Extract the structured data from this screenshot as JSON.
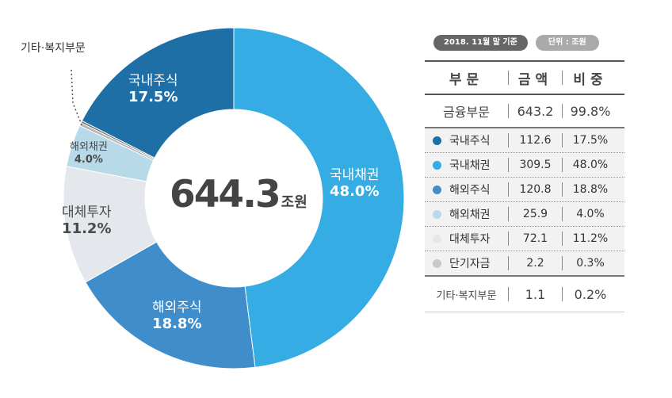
{
  "chart_data": {
    "type": "pie",
    "center_total": "644.3",
    "center_unit": "조원",
    "slices": [
      {
        "name": "국내채권",
        "percent": 48.0,
        "label": "48.0%",
        "color": "#35ace3"
      },
      {
        "name": "해외주식",
        "percent": 18.8,
        "label": "18.8%",
        "color": "#3f8dcb"
      },
      {
        "name": "대체투자",
        "percent": 11.2,
        "label": "11.2%",
        "color": "#e4e7ec"
      },
      {
        "name": "해외채권",
        "percent": 4.0,
        "label": "4.0%",
        "color": "#b7d9e8"
      },
      {
        "name": "단기자금",
        "percent": 0.3,
        "label": "",
        "color": "#b5b5b5"
      },
      {
        "name": "기타·복지부문",
        "percent": 0.2,
        "label": "",
        "color": "#6e6e6e"
      },
      {
        "name": "국내주식",
        "percent": 17.5,
        "label": "17.5%",
        "color": "#1e6fa6"
      }
    ],
    "callout": "기타·복지부문"
  },
  "table": {
    "date_pill": "2018. 11월 말 기준",
    "unit_pill": "단위 : 조원",
    "headers": [
      "부문",
      "금액",
      "비중"
    ],
    "total": {
      "name": "금융부문",
      "amount": "643.2",
      "ratio": "99.8%"
    },
    "rows": [
      {
        "name": "국내주식",
        "amount": "112.6",
        "ratio": "17.5%",
        "color": "#1e6fa6"
      },
      {
        "name": "국내채권",
        "amount": "309.5",
        "ratio": "48.0%",
        "color": "#35ace3"
      },
      {
        "name": "해외주식",
        "amount": "120.8",
        "ratio": "18.8%",
        "color": "#3f8dcb"
      },
      {
        "name": "해외채권",
        "amount": "25.9",
        "ratio": "4.0%",
        "color": "#b7d9e8"
      },
      {
        "name": "대체투자",
        "amount": "72.1",
        "ratio": "11.2%",
        "color": "#e4e7ec"
      },
      {
        "name": "단기자금",
        "amount": "2.2",
        "ratio": "0.3%",
        "color": "#c8c8c8"
      }
    ],
    "other": {
      "name": "기타·복지부문",
      "amount": "1.1",
      "ratio": "0.2%"
    }
  }
}
